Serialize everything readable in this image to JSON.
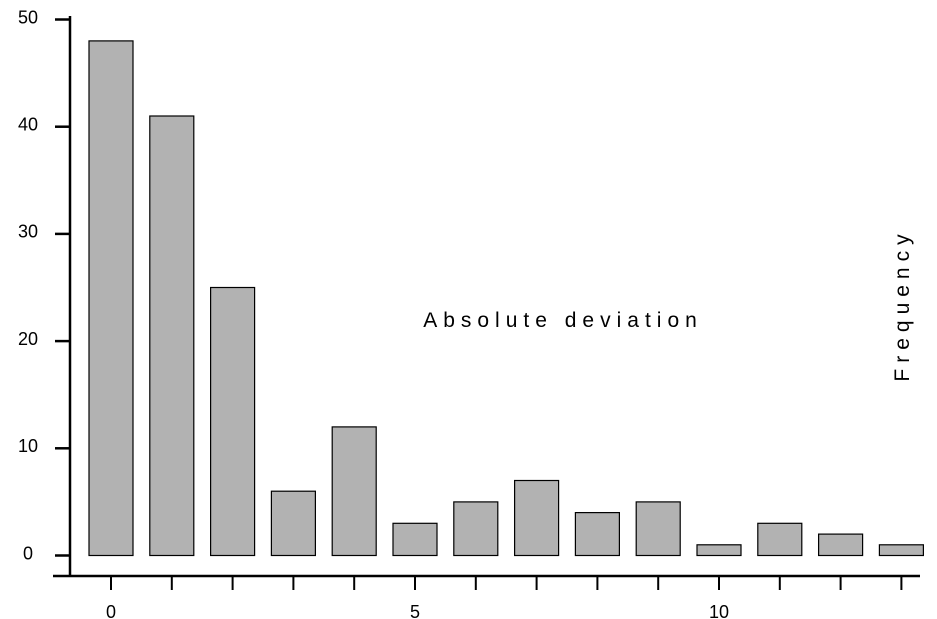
{
  "chart_data": {
    "type": "bar",
    "xlabel": "Absolute deviation",
    "ylabel": "Frequency",
    "x": [
      0,
      1,
      2,
      3,
      4,
      5,
      6,
      7,
      8,
      9,
      10,
      11,
      12,
      13
    ],
    "values": [
      48,
      41,
      25,
      6,
      12,
      3,
      5,
      7,
      4,
      5,
      1,
      3,
      2,
      1
    ],
    "xticks": [
      0,
      5,
      10
    ],
    "yticks": [
      0,
      10,
      20,
      30,
      40,
      50
    ],
    "ylim": [
      0,
      50
    ],
    "grid": false,
    "bar_color": "#b2b2b2",
    "edge_color": "#000000"
  }
}
